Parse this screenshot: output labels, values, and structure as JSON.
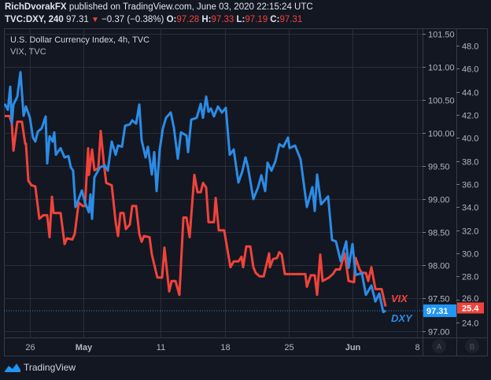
{
  "header": {
    "author": "RichDvorakFX",
    "published": "published on TradingView.com, June 03, 2020 22:15:24 UTC",
    "symbol": "TVC:DXY, 240",
    "last": "97.31",
    "change": "−0.37 (−0.38%)",
    "o_label": "O:",
    "o": "97.28",
    "h_label": "H:",
    "h": "97.33",
    "l_label": "L:",
    "l": "97.19",
    "c_label": "C:",
    "c": "97.31"
  },
  "legend": {
    "series1": "U.S. Dollar Currency Index, 4h, TVC",
    "series2": "VIX, TVC"
  },
  "axis_buttons": {
    "a": "A",
    "b": "B"
  },
  "footer": {
    "brand": "TradingView"
  },
  "colors": {
    "dxy": "#2b8ce6",
    "vix": "#f0433a",
    "bg": "#131722",
    "grid": "#2a2e39"
  },
  "chart_data": {
    "type": "line",
    "title": "U.S. Dollar Currency Index, 4h, TVC",
    "x_unit": "days from Apr 26, 2020",
    "x_ticks": [
      {
        "label": "26",
        "day": 0
      },
      {
        "label": "May",
        "day": 5
      },
      {
        "label": "11",
        "day": 15
      },
      {
        "label": "18",
        "day": 22
      },
      {
        "label": "25",
        "day": 29
      },
      {
        "label": "Jun",
        "day": 36
      },
      {
        "label": "8",
        "day": 43
      }
    ],
    "y_axis_a": {
      "ticks": [
        "101.50",
        "101.00",
        "100.50",
        "100.00",
        "99.50",
        "99.00",
        "98.50",
        "98.00",
        "97.50",
        "97.00"
      ],
      "range": [
        97.0,
        101.5
      ]
    },
    "y_axis_b": {
      "ticks": [
        "48.0",
        "46.0",
        "44.0",
        "42.0",
        "40.0",
        "38.0",
        "36.0",
        "34.0",
        "32.0",
        "30.0",
        "28.0",
        "26.0",
        "24.0"
      ],
      "range": [
        24.0,
        48.0
      ]
    },
    "grid": true,
    "series": [
      {
        "name": "DXY",
        "axis": "A",
        "last_label": "97.31",
        "end_label": "DXY",
        "x": [
          -2.35,
          -2.06,
          -1.84,
          -1.69,
          -1.54,
          -1.18,
          -0.88,
          -0.59,
          -0.37,
          0,
          0.29,
          0.51,
          0.74,
          1.1,
          1.47,
          1.62,
          1.84,
          2.13,
          2.28,
          2.43,
          2.87,
          3.24,
          3.6,
          3.82,
          4.04,
          4.26,
          4.56,
          4.85,
          5.2,
          5.71,
          5.92,
          6.12,
          6.43,
          7.14,
          7.76,
          8.16,
          8.67,
          9.18,
          9.49,
          10.0,
          10.41,
          11.02,
          11.33,
          11.84,
          12.24,
          12.55,
          13.06,
          13.37,
          13.88,
          14.18,
          14.49,
          14.9,
          15.26,
          15.6,
          16.11,
          16.45,
          16.88,
          17.22,
          17.82,
          17.99,
          18.33,
          18.93,
          19.36,
          19.61,
          19.95,
          20.21,
          20.47,
          20.8,
          21.23,
          21.66,
          22.09,
          22.52,
          22.95,
          23.47,
          23.9,
          24.25,
          24.51,
          25.11,
          25.63,
          25.98,
          26.41,
          26.67,
          27.1,
          27.53,
          27.96,
          28.4,
          28.91,
          29.09,
          29.69,
          30.3,
          30.99,
          31.59,
          31.85,
          32.11,
          32.54,
          33.32,
          33.75,
          34.18,
          34.7,
          35.31,
          35.57,
          36.0,
          36.34,
          37.02,
          37.45,
          38.05,
          38.48,
          38.9,
          39.33,
          39.59
        ],
        "y": [
          100.44,
          100.35,
          100.7,
          100.14,
          100.43,
          100.55,
          100.92,
          100.26,
          100.4,
          100.23,
          99.93,
          99.87,
          100.02,
          100.07,
          100.25,
          99.54,
          99.95,
          99.87,
          100.01,
          99.67,
          99.77,
          99.63,
          99.65,
          99.48,
          99.43,
          98.88,
          99.0,
          99.13,
          98.95,
          98.8,
          99.07,
          98.7,
          99.33,
          99.48,
          99.51,
          99.43,
          99.87,
          99.67,
          99.81,
          99.79,
          100.11,
          100.13,
          100.19,
          100.14,
          100.43,
          99.89,
          99.63,
          99.79,
          99.37,
          99.71,
          99.12,
          99.75,
          100.07,
          100.23,
          100.31,
          100.08,
          99.61,
          100.01,
          99.96,
          99.71,
          100.2,
          100.23,
          100.44,
          100.23,
          100.55,
          100.32,
          100.37,
          100.25,
          100.4,
          100.31,
          100.38,
          99.67,
          99.75,
          99.25,
          99.42,
          99.63,
          99.49,
          99.0,
          99.18,
          99.36,
          99.12,
          99.55,
          99.43,
          99.57,
          99.83,
          99.79,
          99.93,
          99.77,
          99.81,
          99.6,
          98.88,
          99.18,
          98.82,
          99.37,
          98.92,
          99.04,
          98.38,
          98.36,
          98.06,
          98.36,
          97.96,
          98.32,
          97.85,
          97.88,
          97.55,
          97.69,
          97.45,
          97.57,
          97.29,
          97.31
        ]
      },
      {
        "name": "VIX",
        "axis": "B",
        "last_label": "25.4",
        "end_label": "VIX",
        "x": [
          -2.35,
          -1.91,
          -1.69,
          -1.54,
          -1.18,
          -0.74,
          -0.44,
          -0.37,
          -0.15,
          0.15,
          0.51,
          0.88,
          1.25,
          1.62,
          1.84,
          2.06,
          2.21,
          2.87,
          3.24,
          3.46,
          3.97,
          4.19,
          4.56,
          4.93,
          5.2,
          5.61,
          5.71,
          6.12,
          6.43,
          6.94,
          7.24,
          7.65,
          7.96,
          8.67,
          9.18,
          9.49,
          9.8,
          10.2,
          10.51,
          11.02,
          11.33,
          11.84,
          12.24,
          12.55,
          12.86,
          13.57,
          13.88,
          14.59,
          15.17,
          15.43,
          15.94,
          16.2,
          16.62,
          17.05,
          17.48,
          17.82,
          18.16,
          18.67,
          19.01,
          19.36,
          19.61,
          19.95,
          20.21,
          20.38,
          20.8,
          20.98,
          21.32,
          21.91,
          22.35,
          22.6,
          22.95,
          23.47,
          23.81,
          23.99,
          24.33,
          24.77,
          25.11,
          25.37,
          25.8,
          26.24,
          26.84,
          26.93,
          27.27,
          27.7,
          27.96,
          28.22,
          28.57,
          30.82,
          30.99,
          31.42,
          31.85,
          32.11,
          32.46,
          32.72,
          33.41,
          33.84,
          34.18,
          34.62,
          35.14,
          35.57,
          36.17,
          36.34,
          36.77,
          37.02,
          37.45,
          37.71,
          38.05,
          38.48,
          39.16,
          39.59
        ],
        "y": [
          41.9,
          41.9,
          41.3,
          38.9,
          41.4,
          41.4,
          39.5,
          39.5,
          36.3,
          35.9,
          35.8,
          33.0,
          33.3,
          33.3,
          31.4,
          34.9,
          33.5,
          33.5,
          30.8,
          31.3,
          31.2,
          31.7,
          34.4,
          34.1,
          34.1,
          39.1,
          36.8,
          39.0,
          37.2,
          37.4,
          40.6,
          37.8,
          36.1,
          35.9,
          32.7,
          31.5,
          33.5,
          33.5,
          32.1,
          32.5,
          34.1,
          34.1,
          31.7,
          31.0,
          31.5,
          31.4,
          29.9,
          27.9,
          27.9,
          30.5,
          26.7,
          27.6,
          27.6,
          26.4,
          33.1,
          33.1,
          31.4,
          36.8,
          35.3,
          35.3,
          36.1,
          35.7,
          32.7,
          32.7,
          32.7,
          34.8,
          32.0,
          32.0,
          29.9,
          28.8,
          29.3,
          29.3,
          29.7,
          28.8,
          30.6,
          30.6,
          28.8,
          28.3,
          28.0,
          28.0,
          30.0,
          28.8,
          29.5,
          29.6,
          30.1,
          29.9,
          28.2,
          28.2,
          27.1,
          28.1,
          28.1,
          26.4,
          29.9,
          27.6,
          27.9,
          28.2,
          28.6,
          28.6,
          30.0,
          27.6,
          27.5,
          29.6,
          28.6,
          28.3,
          28.3,
          27.6,
          28.8,
          26.9,
          26.9,
          25.4
        ]
      }
    ]
  }
}
